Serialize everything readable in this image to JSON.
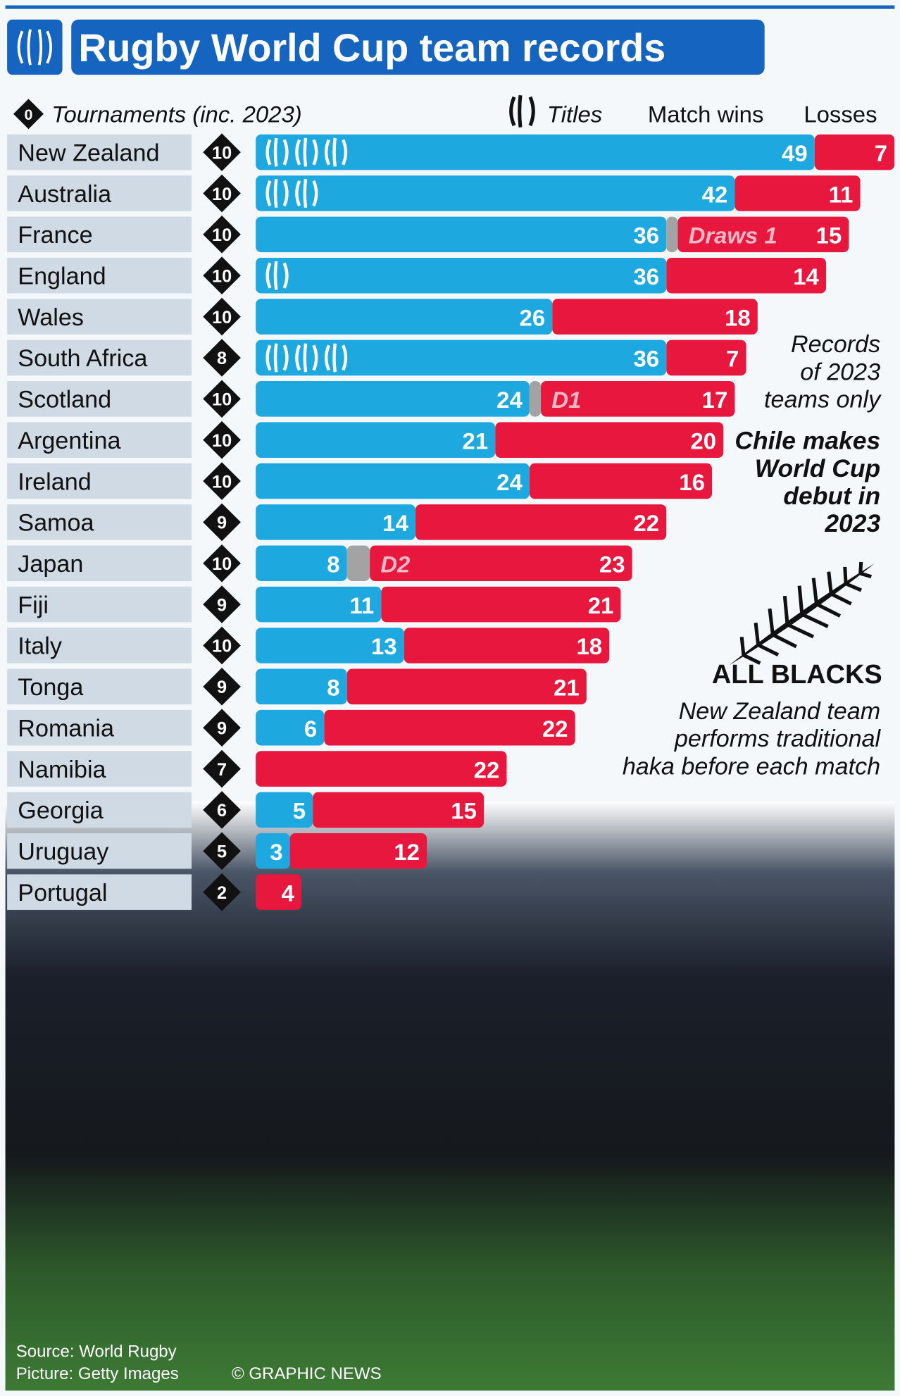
{
  "chart_data": {
    "type": "stacked-bar-horizontal",
    "title": "Rugby World Cup team records",
    "categories": [
      "New Zealand",
      "Australia",
      "France",
      "England",
      "Wales",
      "South Africa",
      "Scotland",
      "Argentina",
      "Ireland",
      "Samoa",
      "Japan",
      "Fiji",
      "Italy",
      "Tonga",
      "Romania",
      "Namibia",
      "Georgia",
      "Uruguay",
      "Portugal"
    ],
    "tournaments": {
      "name": "Tournaments (inc. 2023)",
      "symbol": "0",
      "color": "#111111",
      "values": [
        10,
        10,
        10,
        10,
        10,
        8,
        10,
        10,
        10,
        9,
        10,
        9,
        10,
        9,
        9,
        7,
        6,
        5,
        2
      ]
    },
    "titles": {
      "name": "Titles",
      "color": "#ffffff",
      "values": [
        3,
        2,
        0,
        1,
        0,
        3,
        0,
        0,
        0,
        0,
        0,
        0,
        0,
        0,
        0,
        0,
        0,
        0,
        0
      ]
    },
    "series": [
      {
        "name": "Match wins",
        "color": "#1ea8e0",
        "values": [
          49,
          42,
          36,
          36,
          26,
          36,
          24,
          21,
          24,
          14,
          8,
          11,
          13,
          8,
          6,
          0,
          5,
          3,
          0
        ]
      },
      {
        "color": "#a3a3a3",
        "values": [
          0,
          0,
          1,
          0,
          0,
          0,
          1,
          0,
          0,
          0,
          2,
          0,
          0,
          0,
          0,
          0,
          0,
          0,
          0
        ],
        "value_labels": [
          null,
          null,
          "Draws 1",
          null,
          null,
          null,
          "D1",
          null,
          null,
          null,
          "D2",
          null,
          null,
          null,
          null,
          null,
          null,
          null,
          null
        ]
      },
      {
        "name": "Losses",
        "color": "#e8173e",
        "values": [
          7,
          11,
          15,
          14,
          18,
          7,
          17,
          20,
          16,
          22,
          23,
          21,
          18,
          21,
          22,
          22,
          15,
          12,
          4
        ]
      }
    ],
    "annotations": [
      "Records of 2023 teams only",
      "Chile makes World Cup debut in 2023",
      "ALL BLACKS",
      "New Zealand team performs traditional haka before each match"
    ],
    "source": "Source: World Rugby",
    "picture_credit": "Picture: Getty Images",
    "copyright": "© GRAPHIC NEWS"
  }
}
